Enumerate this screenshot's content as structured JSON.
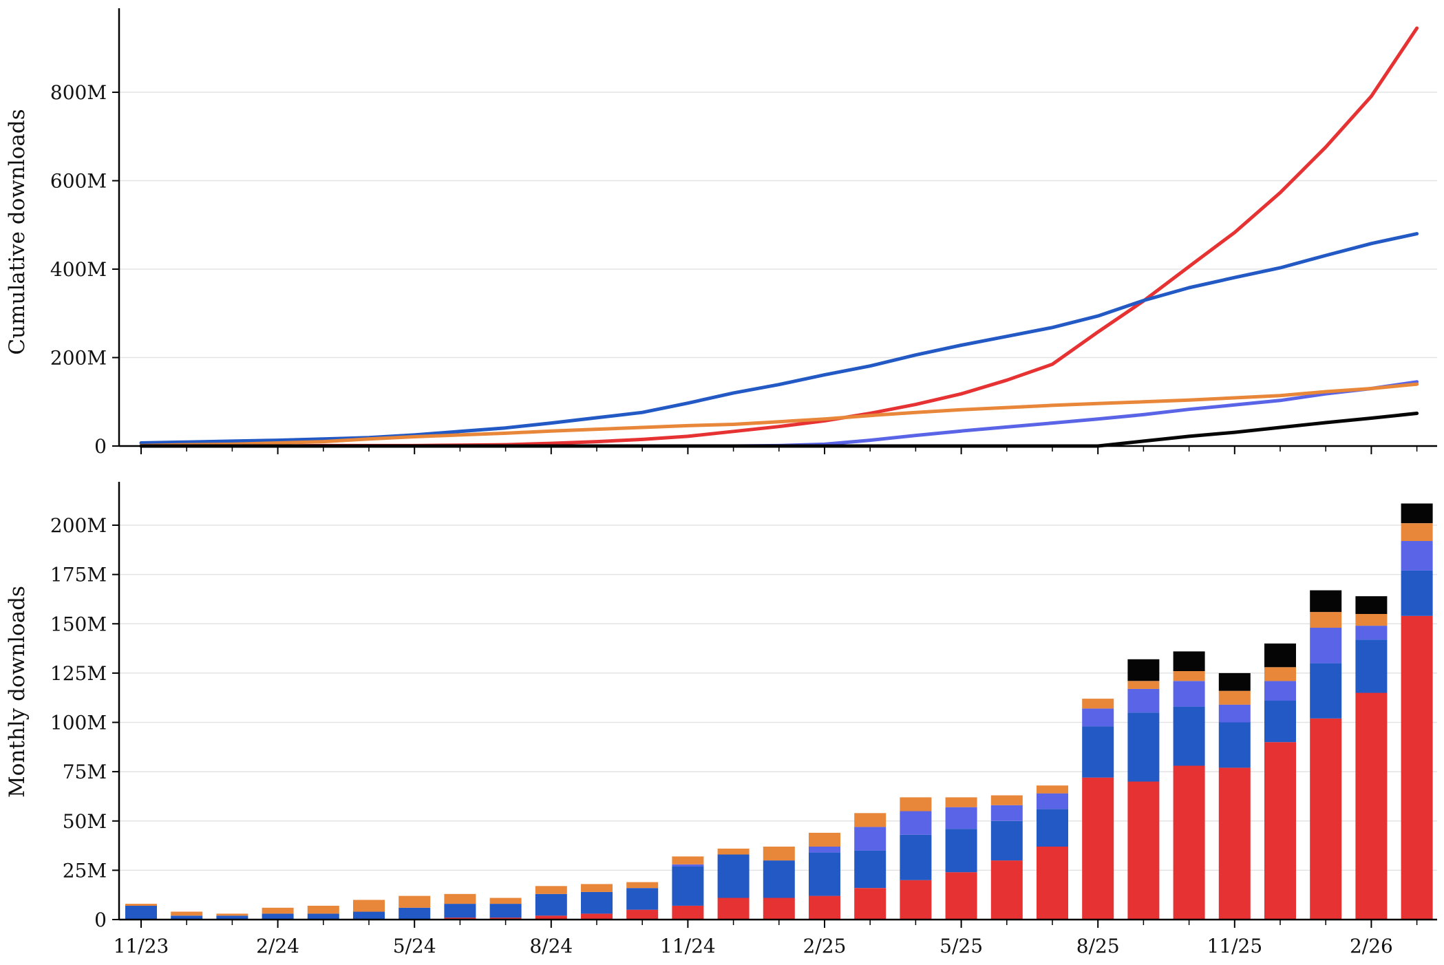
{
  "colors": {
    "red": "#e63232",
    "blue": "#2259c4",
    "purple": "#5a64e6",
    "orange": "#e8863a",
    "black": "#050505",
    "grid": "#e3e3e3"
  },
  "chart_data": [
    {
      "type": "line",
      "ylabel": "Cumulative downloads",
      "ylim": [
        0,
        990
      ],
      "yticks": [
        0,
        200,
        400,
        600,
        800
      ],
      "ytick_labels": [
        "0",
        "200M",
        "400M",
        "600M",
        "800M"
      ],
      "grid": true,
      "months": [
        "11/23",
        "12/23",
        "1/24",
        "2/24",
        "3/24",
        "4/24",
        "5/24",
        "6/24",
        "7/24",
        "8/24",
        "9/24",
        "10/24",
        "11/24",
        "12/24",
        "1/25",
        "2/25",
        "3/25",
        "4/25",
        "5/25",
        "6/25",
        "7/25",
        "8/25",
        "9/25",
        "10/25",
        "11/25",
        "12/25",
        "1/26",
        "2/26",
        "3/26"
      ],
      "series": [
        {
          "color_key": "red",
          "values": [
            0,
            0,
            0,
            0,
            1,
            1,
            1,
            2,
            3,
            6,
            10,
            15,
            22,
            33,
            44,
            57,
            74,
            94,
            118,
            149,
            185,
            258,
            328,
            406,
            483,
            573,
            676,
            791,
            945
          ]
        },
        {
          "color_key": "blue",
          "values": [
            7,
            9,
            11,
            13,
            16,
            19,
            25,
            33,
            41,
            52,
            64,
            76,
            97,
            120,
            139,
            161,
            181,
            206,
            228,
            248,
            268,
            294,
            329,
            358,
            381,
            403,
            431,
            458,
            480
          ]
        },
        {
          "color_key": "purple",
          "values": [
            0,
            0,
            0,
            0,
            0,
            0,
            0,
            0,
            0,
            0,
            0,
            0,
            0,
            0,
            1,
            4,
            13,
            24,
            34,
            43,
            52,
            61,
            71,
            83,
            93,
            103,
            118,
            130,
            145
          ]
        },
        {
          "color_key": "orange",
          "values": [
            1,
            3,
            4,
            7,
            10,
            16,
            21,
            25,
            29,
            34,
            38,
            42,
            46,
            49,
            55,
            61,
            69,
            76,
            82,
            87,
            92,
            96,
            100,
            104,
            109,
            114,
            123,
            130,
            140
          ]
        },
        {
          "color_key": "black",
          "values": [
            0,
            0,
            0,
            0,
            0,
            0,
            0,
            0,
            0,
            0,
            0,
            0,
            0,
            0,
            0,
            0,
            0,
            0,
            0,
            0,
            0,
            0,
            11,
            22,
            31,
            42,
            53,
            63,
            74
          ]
        }
      ]
    },
    {
      "type": "bar",
      "stacked": true,
      "ylabel": "Monthly downloads",
      "ylim": [
        0,
        222
      ],
      "yticks": [
        0,
        25,
        50,
        75,
        100,
        125,
        150,
        175,
        200
      ],
      "ytick_labels": [
        "0",
        "25M",
        "50M",
        "75M",
        "100M",
        "125M",
        "150M",
        "175M",
        "200M"
      ],
      "grid": true,
      "categories": [
        "11/23",
        "12/23",
        "1/24",
        "2/24",
        "3/24",
        "4/24",
        "5/24",
        "6/24",
        "7/24",
        "8/24",
        "9/24",
        "10/24",
        "11/24",
        "12/24",
        "1/25",
        "2/25",
        "3/25",
        "4/25",
        "5/25",
        "6/25",
        "7/25",
        "8/25",
        "9/25",
        "10/25",
        "11/25",
        "12/25",
        "1/26",
        "2/26",
        "3/26"
      ],
      "xtick_labels": [
        "11/23",
        "2/24",
        "5/24",
        "8/24",
        "11/24",
        "2/25",
        "5/25",
        "8/25",
        "11/25",
        "2/26"
      ],
      "series": [
        {
          "color_key": "red",
          "values": [
            0,
            0,
            0,
            0,
            0,
            0,
            0,
            1,
            1,
            2,
            3,
            5,
            7,
            11,
            11,
            12,
            16,
            20,
            24,
            30,
            37,
            72,
            70,
            78,
            77,
            90,
            102,
            115,
            154
          ]
        },
        {
          "color_key": "blue",
          "values": [
            7,
            2,
            2,
            3,
            3,
            4,
            6,
            7,
            7,
            11,
            11,
            11,
            20,
            22,
            19,
            22,
            19,
            23,
            22,
            20,
            19,
            26,
            35,
            30,
            23,
            21,
            28,
            27,
            23
          ]
        },
        {
          "color_key": "purple",
          "values": [
            0,
            0,
            0,
            0,
            0,
            0,
            0,
            0,
            0,
            0,
            0,
            0,
            1,
            0,
            0,
            3,
            12,
            12,
            11,
            8,
            8,
            9,
            12,
            13,
            9,
            10,
            18,
            7,
            15
          ]
        },
        {
          "color_key": "orange",
          "values": [
            1,
            2,
            1,
            3,
            4,
            6,
            6,
            5,
            3,
            4,
            4,
            3,
            4,
            3,
            7,
            7,
            7,
            7,
            5,
            5,
            4,
            5,
            4,
            5,
            7,
            7,
            8,
            6,
            9
          ]
        },
        {
          "color_key": "black",
          "values": [
            0,
            0,
            0,
            0,
            0,
            0,
            0,
            0,
            0,
            0,
            0,
            0,
            0,
            0,
            0,
            0,
            0,
            0,
            0,
            0,
            0,
            0,
            11,
            10,
            9,
            12,
            11,
            9,
            10
          ]
        }
      ]
    }
  ]
}
